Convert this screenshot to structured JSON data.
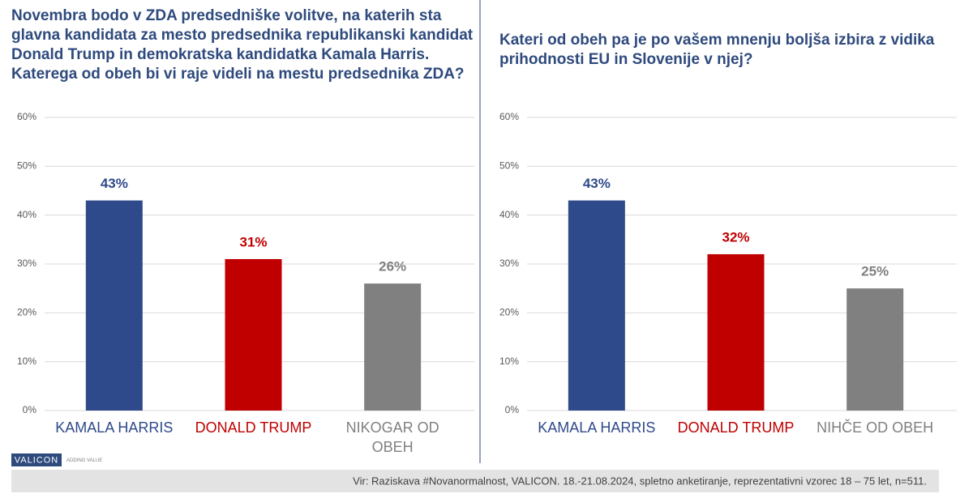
{
  "chart_data": [
    {
      "type": "bar",
      "title": "Novembra bodo v ZDA predsedniške volitve, na katerih sta glavna kandidata za mesto predsednika republikanski kandidat Donald Trump in demokratska kandidatka Kamala Harris. Katerega od obeh bi vi raje videli na mestu predsednika ZDA?",
      "categories": [
        "KAMALA HARRIS",
        "DONALD TRUMP",
        "NIKOGAR OD OBEH"
      ],
      "values": [
        43,
        31,
        26
      ],
      "value_labels": [
        "43%",
        "31%",
        "26%"
      ],
      "colors": [
        "#2f4a8a",
        "#c00000",
        "#808080"
      ],
      "ylim": [
        0,
        60
      ],
      "yticks": [
        {
          "value": 0,
          "label": "0%"
        },
        {
          "value": 10,
          "label": "10%"
        },
        {
          "value": 20,
          "label": "20%"
        },
        {
          "value": 30,
          "label": "30%"
        },
        {
          "value": 40,
          "label": "40%"
        },
        {
          "value": 50,
          "label": "50%"
        },
        {
          "value": 60,
          "label": "60%"
        }
      ],
      "grid": true
    },
    {
      "type": "bar",
      "title": "Kateri od obeh pa je po vašem mnenju boljša izbira z vidika prihodnosti EU in Slovenije v njej?",
      "categories": [
        "KAMALA HARRIS",
        "DONALD TRUMP",
        "NIHČE OD OBEH"
      ],
      "values": [
        43,
        32,
        25
      ],
      "value_labels": [
        "43%",
        "32%",
        "25%"
      ],
      "colors": [
        "#2f4a8a",
        "#c00000",
        "#808080"
      ],
      "ylim": [
        0,
        60
      ],
      "yticks": [
        {
          "value": 0,
          "label": "0%"
        },
        {
          "value": 10,
          "label": "10%"
        },
        {
          "value": 20,
          "label": "20%"
        },
        {
          "value": 30,
          "label": "30%"
        },
        {
          "value": 40,
          "label": "40%"
        },
        {
          "value": 50,
          "label": "50%"
        },
        {
          "value": 60,
          "label": "60%"
        }
      ],
      "grid": true
    }
  ],
  "footer": {
    "logo": "VALICON",
    "tagline": "ADDING VALUE",
    "source": "Vir: Raziskava #Novanormalnost, VALICON. 18.-21.08.2024, spletno anketiranje, reprezentativni vzorec 18 – 75 let, n=511."
  }
}
